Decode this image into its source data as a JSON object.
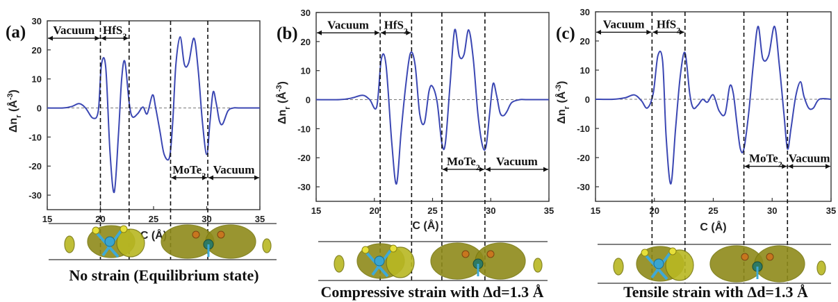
{
  "chart_data": [
    {
      "type": "line",
      "panel_label": "(a)",
      "xlabel": "C (Å)",
      "ylabel_main": "Δn",
      "ylabel_sub": "r",
      "ylabel_unit": " (Å",
      "ylabel_exp": "-3",
      "ylabel_close": ")",
      "xlim": [
        15,
        35
      ],
      "ylim": [
        -35,
        30
      ],
      "xticks": [
        15,
        20,
        25,
        30,
        35
      ],
      "yticks": [
        -30,
        -20,
        -10,
        0,
        10,
        20,
        30
      ],
      "boundaries": [
        20.0,
        22.7,
        26.6,
        30.1
      ],
      "regions": [
        {
          "label": "Vacuum",
          "sub": "",
          "x_range": [
            15,
            20.0
          ],
          "y": 24
        },
        {
          "label": "HfS",
          "sub": "2",
          "x_range": [
            20.0,
            22.7
          ],
          "y": 24
        },
        {
          "label": "MoTe",
          "sub": "2",
          "x_range": [
            26.6,
            30.1
          ],
          "y": -24
        },
        {
          "label": "Vacuum",
          "sub": "",
          "x_range": [
            30.1,
            35
          ],
          "y": -24
        }
      ],
      "series": [
        {
          "x": [
            15,
            16.5,
            17.3,
            18.0,
            18.6,
            19.3,
            19.8,
            20.1,
            20.5,
            20.9,
            21.3,
            21.7,
            22.0,
            22.3,
            22.7,
            23.0,
            23.5,
            24.0,
            24.4,
            24.9,
            25.2,
            25.6,
            26.0,
            26.5,
            26.8,
            27.1,
            27.5,
            27.9,
            28.3,
            28.8,
            29.2,
            29.6,
            30.0,
            30.3,
            30.6,
            30.9,
            31.2,
            31.5,
            32.0,
            32.5,
            33.0,
            35
          ],
          "y": [
            0,
            0,
            0.5,
            1.5,
            0.0,
            -3.5,
            -1,
            15,
            14,
            -15,
            -29,
            -9,
            10,
            16,
            2,
            -3,
            -2,
            0.3,
            -2,
            4.5,
            0.0,
            -8,
            -16,
            -17,
            -5,
            15,
            24.5,
            15,
            15.5,
            24,
            13,
            -5,
            -16,
            -5,
            5.5,
            1.5,
            -4.5,
            -5.5,
            -1,
            0,
            0,
            0
          ]
        }
      ],
      "caption": "No strain (Equilibrium state)"
    },
    {
      "type": "line",
      "panel_label": "(b)",
      "xlabel": "C (Å)",
      "ylabel_main": "Δn",
      "ylabel_sub": "r",
      "ylabel_unit": " (Å",
      "ylabel_exp": "-3",
      "ylabel_close": ")",
      "xlim": [
        15,
        35
      ],
      "ylim": [
        -35,
        30
      ],
      "xticks": [
        15,
        20,
        25,
        30,
        35
      ],
      "yticks": [
        -30,
        -20,
        -10,
        0,
        10,
        20,
        30
      ],
      "boundaries": [
        20.5,
        23.2,
        25.8,
        29.5
      ],
      "regions": [
        {
          "label": "Vacuum",
          "sub": "",
          "x_range": [
            15,
            20.5
          ],
          "y": 23
        },
        {
          "label": "HfS",
          "sub": "2",
          "x_range": [
            20.5,
            23.2
          ],
          "y": 23
        },
        {
          "label": "MoTe",
          "sub": "2",
          "x_range": [
            25.8,
            29.5
          ],
          "y": -24
        },
        {
          "label": "Vacuum",
          "sub": "",
          "x_range": [
            29.5,
            35
          ],
          "y": -24
        }
      ],
      "series": [
        {
          "x": [
            15,
            17.0,
            18.0,
            19.0,
            19.6,
            20.2,
            20.6,
            21.0,
            21.5,
            21.9,
            22.3,
            22.7,
            23.1,
            23.5,
            23.9,
            24.3,
            24.7,
            25.0,
            25.4,
            25.8,
            26.1,
            26.5,
            26.9,
            27.3,
            27.7,
            28.1,
            28.5,
            28.9,
            29.3,
            29.6,
            29.9,
            30.2,
            30.5,
            30.8,
            31.1,
            31.4,
            31.8,
            32.5,
            33.0,
            35
          ],
          "y": [
            0,
            0,
            0.5,
            1.5,
            0.0,
            -2.5,
            14,
            12,
            -15,
            -29,
            -11,
            5,
            16,
            12,
            -5,
            -8,
            3,
            4.5,
            -1,
            -15,
            -15,
            5,
            24,
            15,
            15.5,
            24,
            14,
            -5,
            -16,
            -16,
            -5,
            5.5,
            1.5,
            -4.5,
            -5.5,
            -4,
            -1,
            0,
            0,
            0
          ]
        }
      ],
      "caption": "Compressive strain with Δd=1.3 Å"
    },
    {
      "type": "line",
      "panel_label": "(c)",
      "xlabel": "C (Å)",
      "ylabel_main": "Δn",
      "ylabel_sub": "r",
      "ylabel_unit": " (Å",
      "ylabel_exp": "-3",
      "ylabel_close": ")",
      "xlim": [
        15,
        35
      ],
      "ylim": [
        -35,
        30
      ],
      "xticks": [
        15,
        20,
        25,
        30,
        35
      ],
      "yticks": [
        -30,
        -20,
        -10,
        0,
        10,
        20,
        30
      ],
      "boundaries": [
        19.8,
        22.6,
        27.6,
        31.3
      ],
      "regions": [
        {
          "label": "Vacuum",
          "sub": "",
          "x_range": [
            15,
            19.8
          ],
          "y": 23
        },
        {
          "label": "HfS",
          "sub": "2",
          "x_range": [
            19.8,
            22.6
          ],
          "y": 23
        },
        {
          "label": "MoTe",
          "sub": "2",
          "x_range": [
            27.6,
            31.3
          ],
          "y": -23
        },
        {
          "label": "Vacuum",
          "sub": "",
          "x_range": [
            31.3,
            35
          ],
          "y": -23
        }
      ],
      "series": [
        {
          "x": [
            15,
            16.5,
            17.5,
            18.3,
            18.9,
            19.4,
            19.9,
            20.3,
            20.7,
            21.0,
            21.4,
            21.8,
            22.2,
            22.6,
            23.0,
            23.3,
            23.7,
            24.1,
            24.5,
            25.0,
            25.5,
            26.0,
            26.4,
            26.7,
            27.0,
            27.3,
            27.6,
            28.0,
            28.4,
            28.8,
            29.2,
            29.7,
            30.2,
            30.6,
            31.0,
            31.3,
            31.6,
            32.0,
            32.4,
            32.7,
            33.1,
            33.5,
            34.0,
            35
          ],
          "y": [
            0,
            0,
            0.5,
            1.5,
            -0.5,
            -3,
            2,
            15,
            13,
            -13,
            -29,
            -10,
            8,
            16,
            2,
            -3,
            -2,
            0,
            -1,
            1.5,
            -4,
            -5,
            4.5,
            2,
            -8,
            -17,
            -17,
            -5,
            12,
            25,
            14,
            15,
            25,
            12,
            -5,
            -17,
            -10,
            1,
            6,
            1,
            -3,
            -3,
            0,
            0
          ]
        }
      ],
      "caption": "Tensile strain with Δd=1.3 Å"
    }
  ]
}
